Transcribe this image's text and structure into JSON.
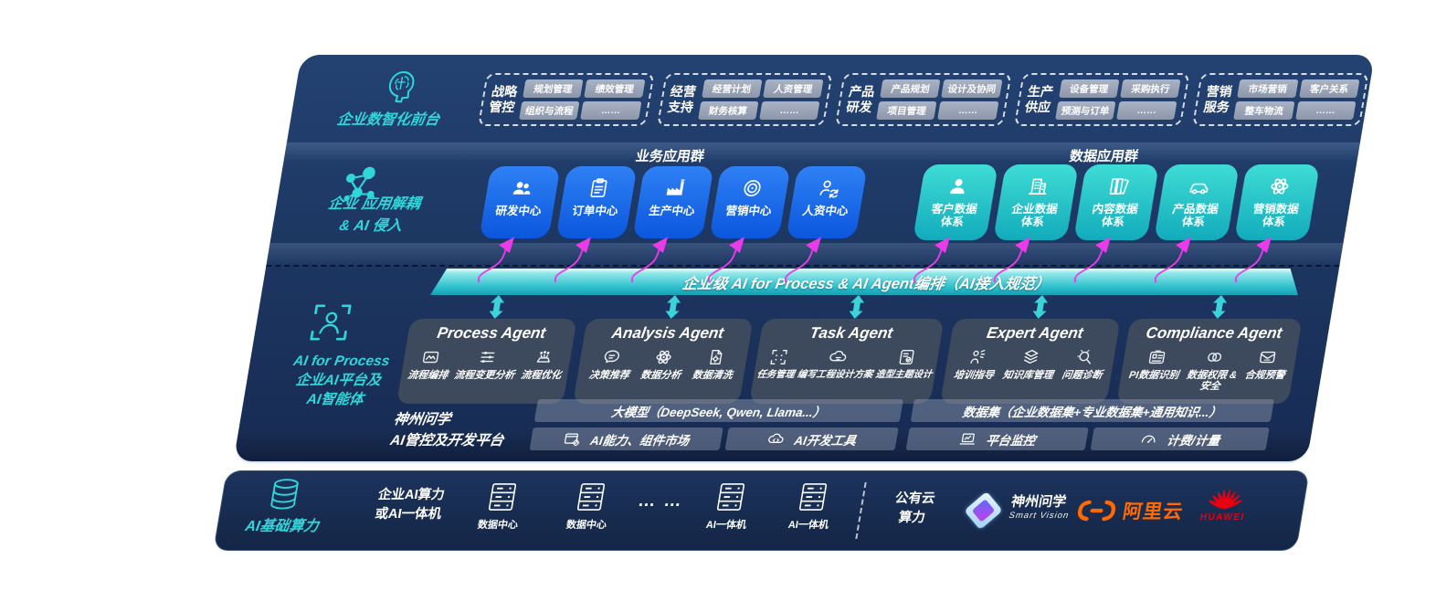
{
  "colors": {
    "panel_navy": "#1d3763",
    "accent_teal": "#2fd6da",
    "app_blue": "#1668e3",
    "data_teal": "#22c4c8",
    "magenta": "#e93be9",
    "band_teal": "#2fc0cd",
    "card_gray": "#3f4b5d",
    "pill_gray": "#97a1b4",
    "alibaba_orange": "#ff6a00",
    "huawei_red": "#e60012"
  },
  "front_office": {
    "label": "企业数智化前台",
    "icon": "brain-head",
    "groups": [
      {
        "name": "战略\n管控",
        "items": [
          "规划管理",
          "绩效管理",
          "组织与流程",
          "……"
        ]
      },
      {
        "name": "经营\n支持",
        "items": [
          "经营计划",
          "人资管理",
          "财务核算",
          "……"
        ]
      },
      {
        "name": "产品\n研发",
        "items": [
          "产品规划",
          "设计及协同",
          "项目管理",
          "……"
        ]
      },
      {
        "name": "生产\n供应",
        "items": [
          "设备管理",
          "采购执行",
          "预测与订单",
          "……"
        ]
      },
      {
        "name": "营销\n服务",
        "items": [
          "市场营销",
          "客户关系",
          "整车物流",
          "……"
        ]
      }
    ]
  },
  "app_layer": {
    "label": "企业 应用解耦\n& AI 侵入",
    "icon": "molecule",
    "business_group_title": "业务应用群",
    "business_apps": [
      {
        "label": "研发中心",
        "icon": "people"
      },
      {
        "label": "订单中心",
        "icon": "clipboard"
      },
      {
        "label": "生产中心",
        "icon": "factory"
      },
      {
        "label": "营销中心",
        "icon": "target"
      },
      {
        "label": "人资中心",
        "icon": "person-sync"
      }
    ],
    "data_group_title": "数据应用群",
    "data_apps": [
      {
        "label": "客户数据\n体系",
        "icon": "person"
      },
      {
        "label": "企业数据\n体系",
        "icon": "building"
      },
      {
        "label": "内容数据\n体系",
        "icon": "files"
      },
      {
        "label": "产品数据\n体系",
        "icon": "car"
      },
      {
        "label": "营销数据\n体系",
        "icon": "atom"
      }
    ]
  },
  "orchestration": {
    "label": "企业级 AI for Process & AI Agent编排（AI接入规范）"
  },
  "ai_layer": {
    "label": "AI for Process\n企业AI平台及\nAI智能体",
    "icon": "scan-person",
    "agents": [
      {
        "title": "Process Agent",
        "capabilities": [
          {
            "label": "流程编排",
            "icon": "chart-box"
          },
          {
            "label": "流程变更分析",
            "icon": "sliders"
          },
          {
            "label": "流程优化",
            "icon": "stack-spark"
          }
        ]
      },
      {
        "title": "Analysis Agent",
        "capabilities": [
          {
            "label": "决策推荐",
            "icon": "chat-face"
          },
          {
            "label": "数据分析",
            "icon": "atom"
          },
          {
            "label": "数据清洗",
            "icon": "doc-gear"
          }
        ]
      },
      {
        "title": "Task Agent",
        "capabilities": [
          {
            "label": "任务管理",
            "icon": "scan-grid"
          },
          {
            "label": "编写工程设计方案",
            "icon": "cloud-tune"
          },
          {
            "label": "造型主题设计",
            "icon": "card-check"
          }
        ]
      },
      {
        "title": "Expert Agent",
        "capabilities": [
          {
            "label": "培训指导",
            "icon": "person-teach"
          },
          {
            "label": "知识库管理",
            "icon": "layers"
          },
          {
            "label": "问题诊断",
            "icon": "bug-search"
          }
        ]
      },
      {
        "title": "Compliance Agent",
        "capabilities": [
          {
            "label": "PI数据识别",
            "icon": "id-card"
          },
          {
            "label": "数据权限 &\n安全",
            "icon": "link-rings"
          },
          {
            "label": "合规预警",
            "icon": "mail-lines"
          }
        ]
      }
    ]
  },
  "platform": {
    "title": "神州问学\nAI管控及开发平台",
    "model_bar": "大模型（DeepSeek, Qwen, Llama...）",
    "dataset_bar": "数据集（企业数据集+专业数据集+通用知识...）",
    "tools": [
      {
        "label": "AI能力、组件市场",
        "icon": "window-gear"
      },
      {
        "label": "AI开发工具",
        "icon": "cloud-code"
      },
      {
        "label": "平台监控",
        "icon": "laptop-chart"
      },
      {
        "label": "计费/计量",
        "icon": "gauge"
      }
    ]
  },
  "compute": {
    "label": "AI基础算力",
    "icon": "database",
    "enterprise_label": "企业AI算力\n或AI一体机",
    "nodes": [
      {
        "label": "数据中心",
        "icon": "server"
      },
      {
        "label": "数据中心",
        "icon": "server"
      },
      {
        "label": "… …",
        "icon": "dots"
      },
      {
        "label": "AI一体机",
        "icon": "server"
      },
      {
        "label": "AI一体机",
        "icon": "server"
      }
    ],
    "public_cloud_label": "公有云\n算力",
    "vendors": [
      {
        "name": "神州问学",
        "sub": "Smart Vision"
      },
      {
        "name": "阿里云"
      },
      {
        "name": "HUAWEI"
      }
    ]
  }
}
